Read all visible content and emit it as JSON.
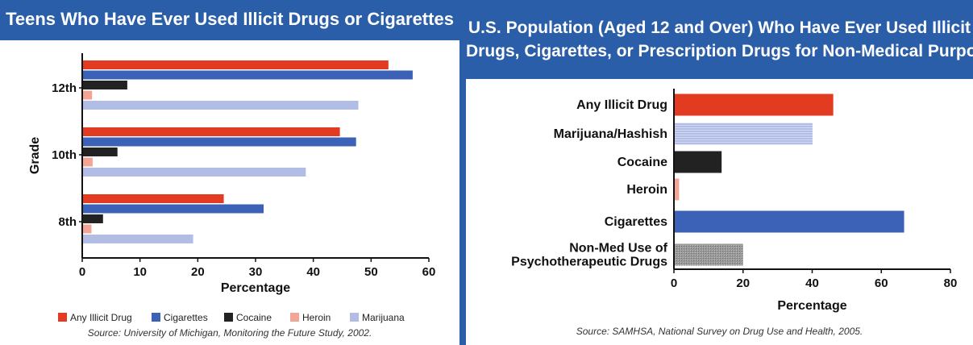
{
  "chart_data": [
    {
      "type": "bar",
      "orientation": "horizontal",
      "title": "Teens Who Have Ever Used Illicit Drugs or Cigarettes",
      "categories": [
        "12th",
        "10th",
        "8th"
      ],
      "series": [
        {
          "name": "Any Illicit Drug",
          "color": "#e23b22",
          "values": [
            53,
            44.6,
            24.5
          ]
        },
        {
          "name": "Cigarettes",
          "color": "#3b62b6",
          "values": [
            57.2,
            47.4,
            31.4
          ]
        },
        {
          "name": "Cocaine",
          "color": "#222222",
          "values": [
            7.8,
            6.1,
            3.6
          ]
        },
        {
          "name": "Heroin",
          "color": "#f4a494",
          "values": [
            1.7,
            1.8,
            1.6
          ]
        },
        {
          "name": "Marijuana",
          "color": "#b2bde6",
          "values": [
            47.8,
            38.7,
            19.2
          ]
        }
      ],
      "xlabel": "Percentage",
      "ylabel": "Grade",
      "xlim": [
        0,
        60
      ],
      "xticks": [
        0,
        10,
        20,
        30,
        40,
        50,
        60
      ],
      "grid": false,
      "legend": "bottom",
      "source": "Source: University of Michigan, Monitoring the Future Study, 2002."
    },
    {
      "type": "bar",
      "orientation": "horizontal",
      "title_lines": [
        "U.S. Population (Aged 12 and Over) Who Have Ever Used Illicit",
        "Drugs, Cigarettes, or Prescription Drugs for Non-Medical Purposes"
      ],
      "categories": [
        [
          "Any Illicit Drug"
        ],
        [
          "Marijuana/Hashish"
        ],
        [
          "Cocaine"
        ],
        [
          "Heroin"
        ],
        [
          "Cigarettes"
        ],
        [
          "Non-Med Use of",
          "Psychotherapeutic Drugs"
        ]
      ],
      "values": [
        46.1,
        40.1,
        13.8,
        1.5,
        66.6,
        20
      ],
      "colors": [
        "#e23b22",
        "#b2bde6",
        "#222222",
        "#f4a494",
        "#3b62b6",
        "#8a8a8a"
      ],
      "xlabel": "Percentage",
      "xlim": [
        0,
        80
      ],
      "xticks": [
        0,
        20,
        40,
        60,
        80
      ],
      "grid": false,
      "source": "Source: SAMHSA, National Survey on Drug Use and Health, 2005."
    }
  ]
}
